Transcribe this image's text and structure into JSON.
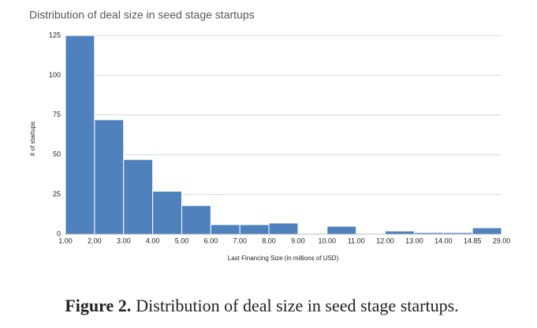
{
  "chart_data": {
    "type": "histogram",
    "title": "Distribution of deal size in seed stage startups",
    "xlabel": "Last Financing Size (in millions of USD)",
    "ylabel": "# of startups",
    "bin_edges": [
      "1.00",
      "2.00",
      "3.00",
      "4.00",
      "5.00",
      "6.00",
      "7.00",
      "8.00",
      "9.00",
      "10.00",
      "11.00",
      "12.00",
      "13.00",
      "14.00",
      "14.85",
      "29.00"
    ],
    "counts": [
      125,
      72,
      47,
      27,
      18,
      6,
      6,
      7,
      0,
      5,
      0,
      2,
      1,
      1,
      4
    ],
    "color": "#4f81bd",
    "ylim": [
      0,
      125
    ],
    "yticks": [
      0,
      25,
      50,
      75,
      100,
      125
    ],
    "grid": true
  },
  "caption": {
    "label": "Figure 2.",
    "text": "Distribution of deal size in seed stage startups."
  }
}
